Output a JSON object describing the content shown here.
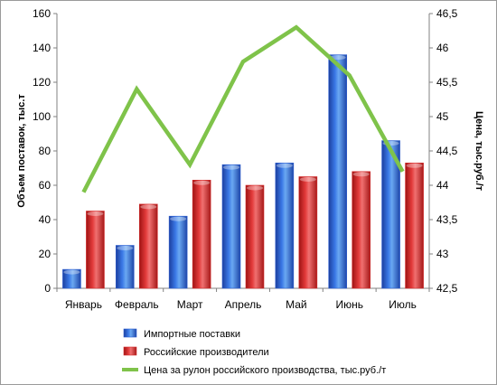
{
  "chart_data": {
    "type": "bar",
    "categories": [
      "Январь",
      "Февраль",
      "Март",
      "Апрель",
      "Май",
      "Июнь",
      "Июль"
    ],
    "series": [
      {
        "name": "Импортные поставки",
        "type": "bar",
        "axis": "left",
        "color": "#2f5fd0",
        "values": [
          11,
          25,
          42,
          72,
          73,
          136,
          86
        ]
      },
      {
        "name": "Российские производители",
        "type": "bar",
        "axis": "left",
        "color": "#d42a2a",
        "values": [
          45,
          49,
          63,
          60,
          65,
          68,
          73
        ]
      },
      {
        "name": "Цена за рулон российского производства, тыс.руб./т",
        "type": "line",
        "axis": "right",
        "color": "#7fc34a",
        "values": [
          43.9,
          45.4,
          44.3,
          45.8,
          46.3,
          45.6,
          44.2
        ]
      }
    ],
    "ylabel": "Объем поставок, тыс.т",
    "y2label": "Цена, тыс.руб./т",
    "ylim": [
      0,
      160
    ],
    "y2lim": [
      42.5,
      46.5
    ],
    "yticks": [
      "0",
      "20",
      "40",
      "60",
      "80",
      "100",
      "120",
      "140",
      "160"
    ],
    "y2ticks": [
      "42,5",
      "43",
      "43,5",
      "44",
      "44,5",
      "45",
      "45,5",
      "46",
      "46,5"
    ],
    "legend_position": "bottom",
    "grid": false
  }
}
